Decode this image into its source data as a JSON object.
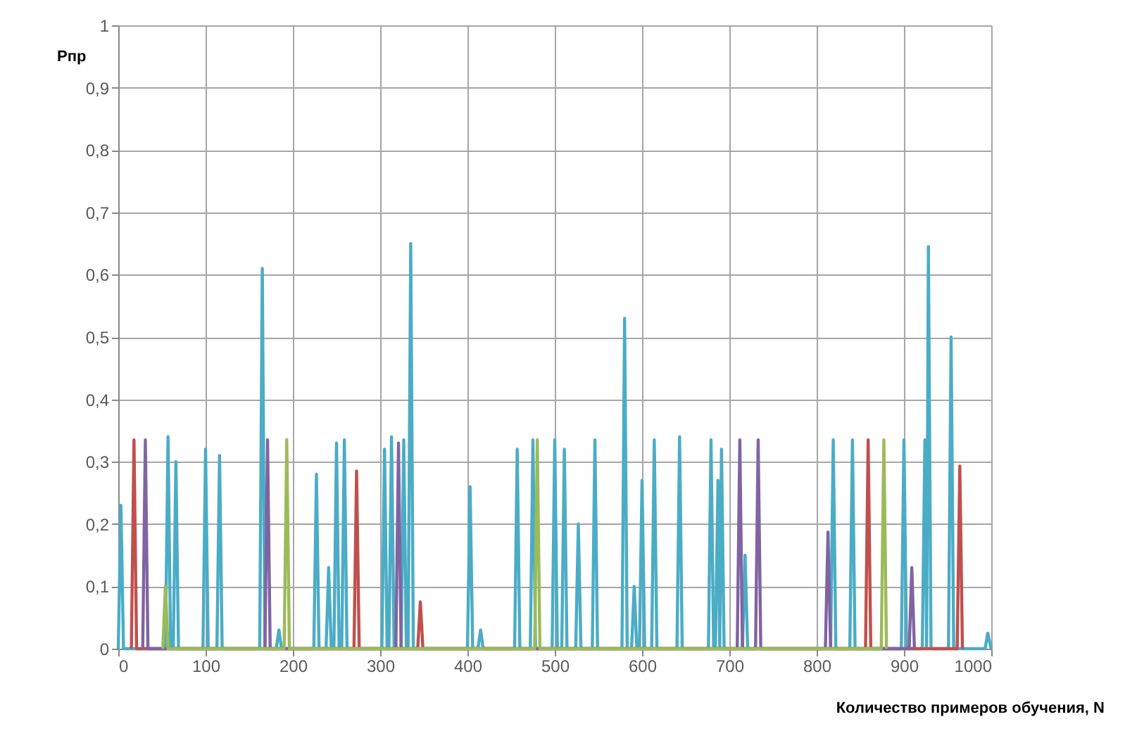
{
  "chart_data": {
    "type": "line",
    "xlabel": "Количество примеров обучения, N",
    "ylabel": "Рпр",
    "xlim": [
      0,
      1000
    ],
    "xticks": [
      0,
      100,
      200,
      300,
      400,
      500,
      600,
      700,
      800,
      900,
      1000
    ],
    "ylim": [
      0,
      1
    ],
    "yticks": [
      0,
      {
        "value": 0.1,
        "label": "0,1"
      },
      {
        "value": 0.2,
        "label": "0,2"
      },
      {
        "value": 0.3,
        "label": "0,3"
      },
      {
        "value": 0.4,
        "label": "0,4"
      },
      {
        "value": 0.5,
        "label": "0,5"
      },
      {
        "value": 0.6,
        "label": "0,6"
      },
      {
        "value": 0.7,
        "label": "0,7"
      },
      {
        "value": 0.8,
        "label": "0,8"
      },
      {
        "value": 0.9,
        "label": "0,9"
      },
      1
    ],
    "grid": true,
    "marker": "none",
    "line_style": "solid",
    "series": [
      {
        "color": "#4bacc6",
        "x": [
          0,
          3,
          6,
          54,
          57,
          60,
          63,
          66,
          69,
          97,
          100,
          103,
          113,
          116,
          119,
          162,
          165,
          168,
          181,
          184,
          187,
          224,
          227,
          230,
          238,
          241,
          244,
          247,
          250,
          253,
          256,
          259,
          262,
          302,
          305,
          308,
          310,
          313,
          316,
          324,
          327,
          330,
          332,
          335,
          338,
          400,
          403,
          406,
          412,
          415,
          418,
          454,
          457,
          460,
          472,
          475,
          478,
          497,
          500,
          503,
          508,
          511,
          514,
          524,
          527,
          530,
          543,
          546,
          549,
          577,
          580,
          583,
          588,
          591,
          594,
          597,
          600,
          603,
          611,
          614,
          617,
          640,
          643,
          646,
          676,
          679,
          682,
          684,
          687,
          689,
          691,
          694,
          715,
          718,
          721,
          816,
          819,
          822,
          838,
          841,
          844,
          897,
          900,
          903,
          921,
          924,
          926,
          928,
          931,
          951,
          954,
          957,
          993,
          996,
          1000
        ],
        "values": [
          0,
          0.23,
          0,
          0,
          0.34,
          0,
          0,
          0.3,
          0,
          0,
          0.32,
          0,
          0,
          0.31,
          0,
          0,
          0.61,
          0,
          0,
          0.03,
          0,
          0,
          0.28,
          0,
          0,
          0.13,
          0,
          0,
          0.33,
          0,
          0,
          0.335,
          0,
          0,
          0.32,
          0,
          0,
          0.34,
          0,
          0,
          0.335,
          0,
          0,
          0.65,
          0,
          0,
          0.26,
          0,
          0,
          0.03,
          0,
          0,
          0.32,
          0,
          0,
          0.335,
          0,
          0,
          0.335,
          0,
          0,
          0.32,
          0,
          0,
          0.2,
          0,
          0,
          0.335,
          0,
          0,
          0.53,
          0,
          0,
          0.1,
          0,
          0,
          0.27,
          0,
          0,
          0.335,
          0,
          0,
          0.34,
          0,
          0,
          0.335,
          0,
          0,
          0.27,
          0,
          0.32,
          0,
          0,
          0.15,
          0,
          0,
          0.335,
          0,
          0,
          0.335,
          0,
          0,
          0.335,
          0,
          0,
          0.335,
          0,
          0.645,
          0,
          0,
          0.5,
          0,
          0,
          0.025,
          0
        ]
      },
      {
        "color": "#c0504d",
        "x": [
          15,
          18,
          21,
          270,
          273,
          276,
          343,
          346,
          349,
          856,
          859,
          862,
          961,
          964,
          967
        ],
        "values": [
          0,
          0.335,
          0,
          0,
          0.285,
          0,
          0,
          0.075,
          0,
          0,
          0.335,
          0,
          0,
          0.293,
          0
        ]
      },
      {
        "color": "#8064a2",
        "x": [
          28,
          31,
          34,
          168,
          171,
          174,
          318,
          321,
          324,
          709,
          712,
          715,
          730,
          733,
          736,
          810,
          813,
          816,
          906,
          909,
          912
        ],
        "values": [
          0,
          0.335,
          0,
          0,
          0.335,
          0,
          0,
          0.33,
          0,
          0,
          0.335,
          0,
          0,
          0.335,
          0,
          0,
          0.187,
          0,
          0,
          0.13,
          0
        ]
      },
      {
        "color": "#9bbb59",
        "x": [
          51,
          54,
          57,
          190,
          193,
          196,
          477,
          480,
          483,
          874,
          877,
          880
        ],
        "values": [
          0,
          0.1,
          0,
          0,
          0.335,
          0,
          0,
          0.335,
          0,
          0,
          0.335,
          0
        ]
      }
    ]
  }
}
